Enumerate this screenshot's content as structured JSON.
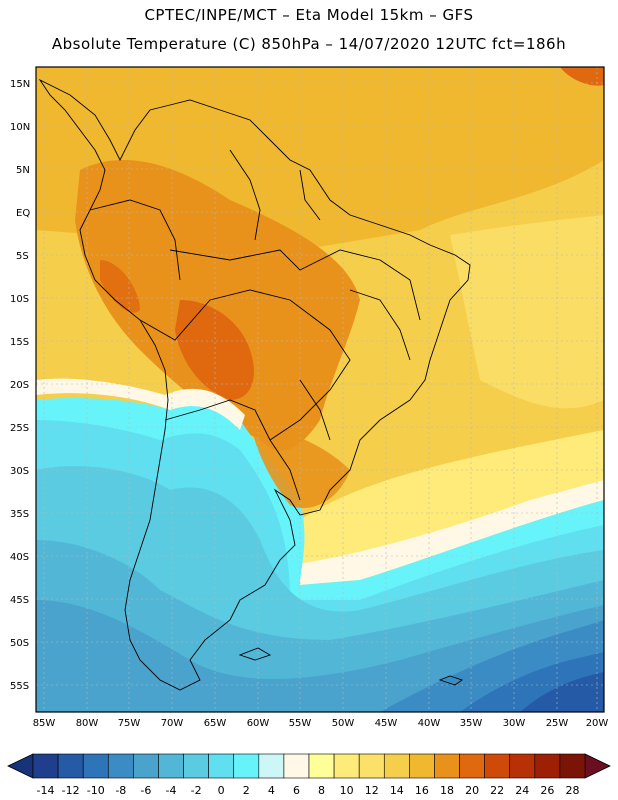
{
  "header": {
    "line1": "CPTEC/INPE/MCT –  Eta Model 15km – GFS",
    "line2": "Absolute Temperature (C) 850hPa – 14/07/2020 12UTC fct=186h"
  },
  "axes": {
    "lat_labels": [
      "15N",
      "10N",
      "5N",
      "EQ",
      "5S",
      "10S",
      "15S",
      "20S",
      "25S",
      "30S",
      "35S",
      "40S",
      "45S",
      "50S",
      "55S"
    ],
    "lon_labels": [
      "85W",
      "80W",
      "75W",
      "70W",
      "65W",
      "60W",
      "55W",
      "50W",
      "45W",
      "40W",
      "35W",
      "30W",
      "25W",
      "20W"
    ]
  },
  "colorbar": {
    "labels": [
      "-14",
      "-12",
      "-10",
      "-8",
      "-6",
      "-4",
      "-2",
      "0",
      "2",
      "4",
      "6",
      "8",
      "10",
      "12",
      "14",
      "16",
      "18",
      "20",
      "22",
      "24",
      "26",
      "28"
    ],
    "colors": [
      "#1f3e8c",
      "#255aa6",
      "#2d74b8",
      "#3b8cc4",
      "#4aa3cc",
      "#52b7d6",
      "#5acbe0",
      "#5fdff0",
      "#66f4fa",
      "#cdf6f6",
      "#fff8e6",
      "#ffff99",
      "#ffeb7a",
      "#fbe06a",
      "#f5cf4c",
      "#f0b82e",
      "#e8921c",
      "#e0680f",
      "#cf4a08",
      "#b83005",
      "#9c1f06",
      "#7a1406"
    ],
    "under_color": "#17337a",
    "over_color": "#6a0f22"
  }
}
